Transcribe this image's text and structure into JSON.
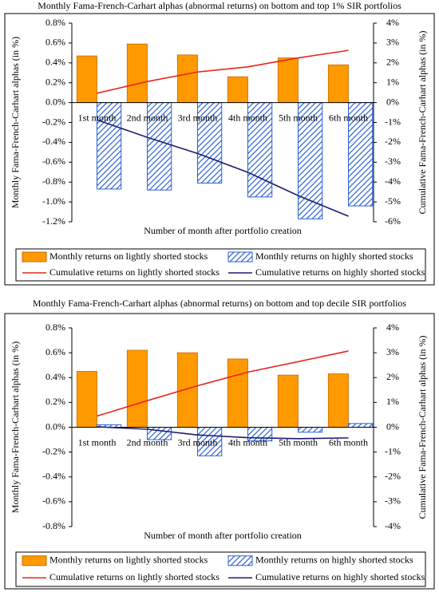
{
  "chart_data": [
    {
      "type": "combo",
      "title": "Monthly Fama-French-Carhart alphas (abnormal returns) on bottom and top 1% SIR portfolios",
      "x_label": "Number of month after portfolio creation",
      "y_label": "Monthly  Fama-French-Carhart alphas (in %)",
      "y2_label": "Cumulative Fama-French-Carhart alphas (in %)",
      "categories": [
        "1st month",
        "2nd month",
        "3rd month",
        "4th month",
        "5th month",
        "6th month"
      ],
      "ylim": [
        -1.2,
        0.8
      ],
      "yticks": [
        {
          "value": 0.8,
          "label": "0.8%"
        },
        {
          "value": 0.6,
          "label": "0.6%"
        },
        {
          "value": 0.4,
          "label": "0.4%"
        },
        {
          "value": 0.2,
          "label": "0.2%"
        },
        {
          "value": 0,
          "label": "0.0%"
        },
        {
          "value": -0.2,
          "label": "-0.2%"
        },
        {
          "value": -0.4,
          "label": "-0.4%"
        },
        {
          "value": -0.6,
          "label": "-0.6%"
        },
        {
          "value": -0.8,
          "label": "-0.8%"
        },
        {
          "value": -1.0,
          "label": "-1.0%"
        },
        {
          "value": -1.2,
          "label": "-1.2%"
        }
      ],
      "y2lim": [
        -6,
        4
      ],
      "y2ticks": [
        {
          "value": 4,
          "label": "4%"
        },
        {
          "value": 3,
          "label": "3%"
        },
        {
          "value": 2,
          "label": "2%"
        },
        {
          "value": 1,
          "label": "1%"
        },
        {
          "value": 0,
          "label": "0%"
        },
        {
          "value": -1,
          "label": "-1%"
        },
        {
          "value": -2,
          "label": "-2%"
        },
        {
          "value": -3,
          "label": "-3%"
        },
        {
          "value": -4,
          "label": "-4%"
        },
        {
          "value": -5,
          "label": "-5%"
        },
        {
          "value": -6,
          "label": "-6%"
        }
      ],
      "series": [
        {
          "name": "Monthly returns on lightly shorted stocks",
          "type": "bar",
          "color": "#ff9900",
          "values": [
            0.47,
            0.59,
            0.48,
            0.26,
            0.45,
            0.38
          ]
        },
        {
          "name": "Monthly returns on highly shorted stocks",
          "type": "hatched-bar",
          "color": "#2a5fd6",
          "values": [
            -0.87,
            -0.88,
            -0.81,
            -0.95,
            -1.17,
            -1.04
          ]
        },
        {
          "name": "Cumulative returns on lightly shorted stocks",
          "type": "line",
          "axis": "y2",
          "color": "#e8251c",
          "values": [
            0.47,
            1.06,
            1.54,
            1.8,
            2.25,
            2.63
          ]
        },
        {
          "name": "Cumulative returns on highly shorted stocks",
          "type": "line",
          "axis": "y2",
          "color": "#1c1c6e",
          "values": [
            -0.87,
            -1.75,
            -2.56,
            -3.51,
            -4.68,
            -5.72
          ]
        }
      ]
    },
    {
      "type": "combo",
      "title": "Monthly Fama-French-Carhart alphas (abnormal returns) on bottom and top decile SIR portfolios",
      "x_label": "Number of month after portfolio creation",
      "y_label": "Monthly  Fama-French-Carhart alphas (in %)",
      "y2_label": "Cumulative Fama-French-Carhart alphas (in %)",
      "categories": [
        "1st month",
        "2nd month",
        "3rd month",
        "4th month",
        "5th month",
        "6th month"
      ],
      "ylim": [
        -0.8,
        0.8
      ],
      "yticks": [
        {
          "value": 0.8,
          "label": "0.8%"
        },
        {
          "value": 0.6,
          "label": "0.6%"
        },
        {
          "value": 0.4,
          "label": "0.4%"
        },
        {
          "value": 0.2,
          "label": "0.2%"
        },
        {
          "value": 0,
          "label": "0.0%"
        },
        {
          "value": -0.2,
          "label": "-0.2%"
        },
        {
          "value": -0.4,
          "label": "-0.4%"
        },
        {
          "value": -0.6,
          "label": "-0.6%"
        },
        {
          "value": -0.8,
          "label": "-0.8%"
        }
      ],
      "y2lim": [
        -4,
        4
      ],
      "y2ticks": [
        {
          "value": 4,
          "label": "4%"
        },
        {
          "value": 3,
          "label": "3%"
        },
        {
          "value": 2,
          "label": "2%"
        },
        {
          "value": 1,
          "label": "1%"
        },
        {
          "value": 0,
          "label": "0%"
        },
        {
          "value": -1,
          "label": "-1%"
        },
        {
          "value": -2,
          "label": "-2%"
        },
        {
          "value": -3,
          "label": "-3%"
        },
        {
          "value": -4,
          "label": "-4%"
        }
      ],
      "series": [
        {
          "name": "Monthly returns on lightly shorted stocks",
          "type": "bar",
          "color": "#ff9900",
          "values": [
            0.45,
            0.62,
            0.6,
            0.55,
            0.42,
            0.43
          ]
        },
        {
          "name": "Monthly returns on highly shorted stocks",
          "type": "hatched-bar",
          "color": "#2a5fd6",
          "values": [
            0.02,
            -0.1,
            -0.23,
            -0.11,
            -0.04,
            0.03
          ]
        },
        {
          "name": "Cumulative returns on lightly shorted stocks",
          "type": "line",
          "axis": "y2",
          "color": "#e8251c",
          "values": [
            0.45,
            1.07,
            1.67,
            2.22,
            2.64,
            3.07
          ]
        },
        {
          "name": "Cumulative returns on highly shorted stocks",
          "type": "line",
          "axis": "y2",
          "color": "#1c1c6e",
          "values": [
            0.02,
            -0.08,
            -0.31,
            -0.42,
            -0.46,
            -0.43
          ]
        }
      ]
    }
  ]
}
